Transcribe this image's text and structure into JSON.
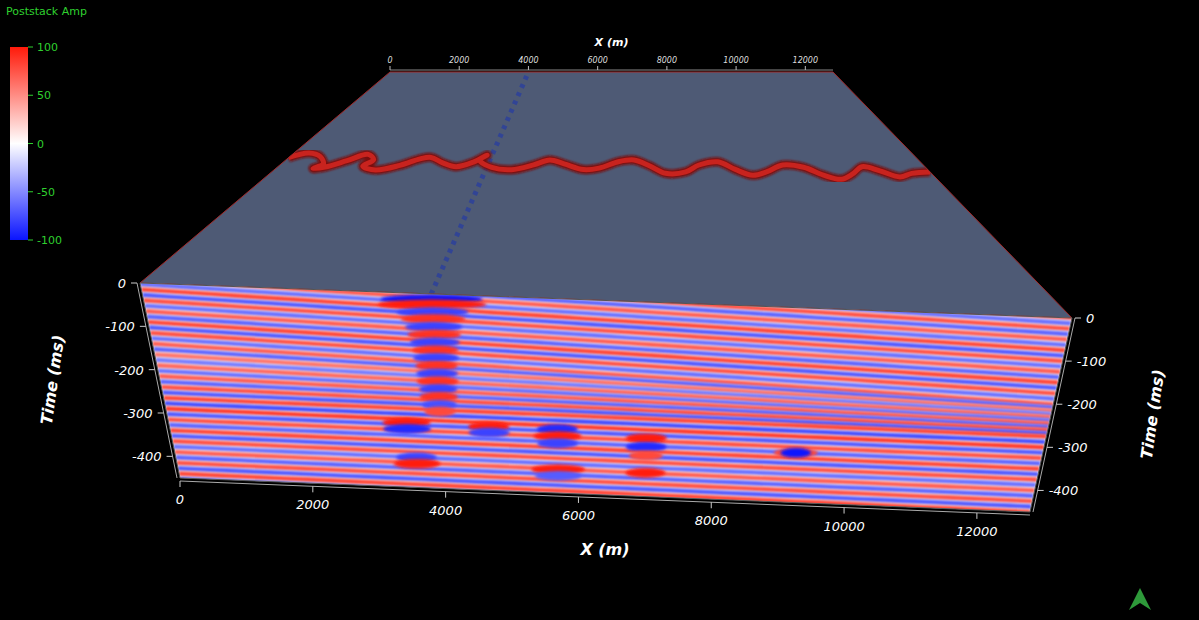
{
  "chart_data": {
    "type": "seismic_cube",
    "colorbar": {
      "title": "Poststack Amp",
      "lim": [
        -100,
        100
      ],
      "ticks": [
        100,
        50,
        0,
        -50,
        -100
      ]
    },
    "xlabel": "X (m)",
    "ylabel": "Time (ms)",
    "xlim": [
      0,
      12800
    ],
    "xticks": [
      0,
      2000,
      4000,
      6000,
      8000,
      10000,
      12000
    ],
    "ylim": [
      -450,
      0
    ],
    "yticks": [
      0,
      -100,
      -200,
      -300,
      -400
    ],
    "inline_lim": [
      0,
      12800
    ],
    "reflectors": {
      "x": [
        0,
        12800
      ],
      "t_left": [
        60,
        47.5,
        35,
        22.5,
        10,
        -2.5,
        -15,
        -27.5,
        -40,
        -52.5,
        -65,
        -77.5,
        -90,
        -102.5,
        -115,
        -127.5,
        -140,
        -152.5,
        -165,
        -177.5,
        -190,
        -202.5,
        -215,
        -227.5,
        -240,
        -252.5,
        -265,
        -277.5,
        -290,
        -302.5,
        -315,
        -327.5,
        -340,
        -352.5,
        -365,
        -377.5,
        -390,
        -402.5,
        -415,
        -427.5,
        -440,
        -452.5
      ],
      "t_right": [
        0,
        -12.5,
        -25,
        -37.5,
        -50,
        -62.5,
        -75,
        -87.5,
        -100,
        -112.5,
        -125,
        -137.5,
        -150,
        -162.5,
        -175,
        -187.5,
        -200,
        -207.5,
        -215,
        -222.5,
        -230,
        -237.5,
        -245,
        -252.5,
        -260,
        -267.5,
        -275,
        -287.5,
        -300,
        -312.5,
        -325,
        -337.5,
        -350,
        -362.5,
        -375,
        -387.5,
        -400,
        -412.5,
        -425,
        -437.5,
        -450,
        -462.5
      ],
      "amp": [
        70,
        -60,
        75,
        -65,
        70,
        -60,
        80,
        -70,
        75,
        -60,
        70,
        -65,
        80,
        -70,
        75,
        -60,
        70,
        -65,
        60,
        -55,
        65,
        -60,
        70,
        -65,
        75,
        -70,
        80,
        -75,
        85,
        -70,
        75,
        -65,
        80,
        -70,
        75,
        -60,
        70,
        -65,
        75,
        -70,
        80,
        -70
      ]
    },
    "anomalies": {
      "x": [
        4000,
        4000,
        4000,
        4000,
        4000,
        4000,
        4000,
        4000,
        4000,
        4000,
        4000,
        4000,
        4000,
        4000,
        4000,
        4000,
        3500,
        3500,
        3600,
        3600,
        4700,
        4700,
        5700,
        5700,
        5700,
        5700,
        5700,
        7000,
        7000,
        7000,
        7000,
        9200,
        9200
      ],
      "width": [
        1400,
        1500,
        1000,
        900,
        800,
        750,
        700,
        650,
        650,
        600,
        600,
        600,
        550,
        550,
        500,
        450,
        700,
        700,
        600,
        700,
        600,
        600,
        600,
        700,
        600,
        800,
        700,
        600,
        600,
        500,
        600,
        650,
        450
      ],
      "t": [
        -12,
        -24,
        -42,
        -58,
        -76,
        -94,
        -112,
        -130,
        -148,
        -166,
        -184,
        -202,
        -220,
        -238,
        -256,
        -272,
        -300,
        -315,
        -380,
        -395,
        -302,
        -316,
        -302,
        -318,
        -335,
        -395,
        -410,
        -315,
        -335,
        -355,
        -395,
        -335,
        -335
      ],
      "amp": [
        -100,
        100,
        -80,
        90,
        -80,
        90,
        -80,
        90,
        -80,
        90,
        -80,
        90,
        -80,
        90,
        -75,
        80,
        100,
        -90,
        -80,
        100,
        100,
        -80,
        -90,
        100,
        -80,
        100,
        -70,
        100,
        -90,
        80,
        100,
        80,
        -100
      ]
    },
    "channel": {
      "x": [
        0,
        300,
        600,
        800,
        700,
        900,
        1200,
        1500,
        1700,
        1600,
        1900,
        2300,
        2600,
        2800,
        3100,
        3400,
        3700,
        3900,
        3800,
        4100,
        4500,
        4900,
        5200,
        5500,
        5900,
        6200,
        6600,
        6900,
        7200,
        7500,
        7900,
        8200,
        8600,
        8900,
        9200,
        9500,
        9900,
        10300,
        10600,
        10900,
        11200,
        11500,
        11800,
        12100,
        12400,
        12800
      ],
      "y": [
        7600,
        7900,
        7700,
        7300,
        7000,
        7100,
        7500,
        7900,
        7600,
        7200,
        7000,
        7300,
        7700,
        7800,
        7500,
        7300,
        7600,
        8000,
        7700,
        7300,
        7200,
        7500,
        7800,
        7600,
        7300,
        7400,
        7800,
        7900,
        7600,
        7200,
        7300,
        7700,
        7900,
        7500,
        7200,
        7400,
        7800,
        7700,
        7300,
        7100,
        7400,
        7800,
        7600,
        7300,
        7500,
        7600
      ]
    },
    "lineament": {
      "x": 4000
    }
  }
}
